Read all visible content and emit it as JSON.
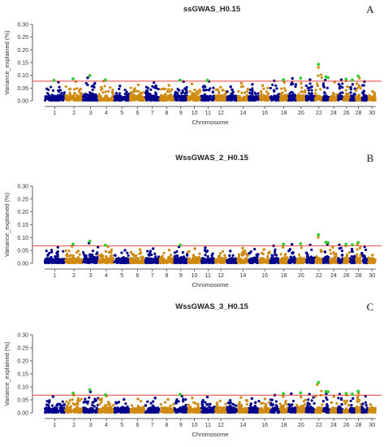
{
  "colors": {
    "odd_chromosome": "#00008b",
    "even_chromosome": "#d08a10",
    "significant": "#2ecc2e",
    "threshold_line": "#e8403a",
    "axis": "#333333"
  },
  "chart_data": [
    {
      "type": "scatter",
      "title": "ssGWAS_H0.15",
      "panel_letter": "A",
      "xlabel": "Chromosome",
      "ylabel": "Variance_explained (%)",
      "ylim": [
        0,
        0.3
      ],
      "yticks": [
        0.0,
        0.05,
        0.1,
        0.15,
        0.2,
        0.25,
        0.3
      ],
      "x_tick_labels": [
        "1",
        "2",
        "3",
        "4",
        "5",
        "6",
        "7",
        "8",
        "9",
        "10",
        "11",
        "12",
        "14",
        "16",
        "18",
        "20",
        "22",
        "24",
        "26",
        "28",
        "30"
      ],
      "threshold": 0.077,
      "grid": false,
      "chromosomes": [
        1,
        2,
        3,
        4,
        5,
        6,
        7,
        8,
        9,
        10,
        11,
        12,
        13,
        14,
        15,
        16,
        17,
        18,
        19,
        20,
        21,
        22,
        23,
        24,
        25,
        26,
        27,
        28,
        29,
        30
      ],
      "chromosome_peaks": [
        0.08,
        0.082,
        0.098,
        0.084,
        0.063,
        0.068,
        0.078,
        0.066,
        0.082,
        0.072,
        0.083,
        0.058,
        0.06,
        0.075,
        0.07,
        0.065,
        0.085,
        0.078,
        0.095,
        0.075,
        0.09,
        0.142,
        0.088,
        0.08,
        0.09,
        0.085,
        0.07,
        0.096,
        0.082,
        0.04
      ],
      "significant_points": [
        {
          "chromosome": 1,
          "value": 0.08
        },
        {
          "chromosome": 2,
          "value": 0.086
        },
        {
          "chromosome": 3,
          "value": 0.099
        },
        {
          "chromosome": 4,
          "value": 0.082
        },
        {
          "chromosome": 9,
          "value": 0.081
        },
        {
          "chromosome": 11,
          "value": 0.08
        },
        {
          "chromosome": 18,
          "value": 0.083
        },
        {
          "chromosome": 20,
          "value": 0.089
        },
        {
          "chromosome": 22,
          "value": 0.143
        },
        {
          "chromosome": 23,
          "value": 0.094
        },
        {
          "chromosome": 23,
          "value": 0.091
        },
        {
          "chromosome": 26,
          "value": 0.085
        },
        {
          "chromosome": 27,
          "value": 0.082
        },
        {
          "chromosome": 28,
          "value": 0.097
        }
      ]
    },
    {
      "type": "scatter",
      "title": "WssGWAS_2_H0.15",
      "panel_letter": "B",
      "xlabel": "Chromosome",
      "ylabel": "Variance_explained (%)",
      "ylim": [
        0,
        0.3
      ],
      "yticks": [
        0.0,
        0.05,
        0.1,
        0.15,
        0.2,
        0.25,
        0.3
      ],
      "x_tick_labels": [
        "1",
        "2",
        "3",
        "4",
        "5",
        "6",
        "7",
        "8",
        "9",
        "10",
        "11",
        "12",
        "14",
        "16",
        "18",
        "20",
        "22",
        "24",
        "26",
        "28",
        "30"
      ],
      "threshold": 0.068,
      "grid": false,
      "chromosomes": [
        1,
        2,
        3,
        4,
        5,
        6,
        7,
        8,
        9,
        10,
        11,
        12,
        13,
        14,
        15,
        16,
        17,
        18,
        19,
        20,
        21,
        22,
        23,
        24,
        25,
        26,
        27,
        28,
        29,
        30
      ],
      "chromosome_peaks": [
        0.068,
        0.072,
        0.085,
        0.07,
        0.055,
        0.058,
        0.062,
        0.056,
        0.07,
        0.062,
        0.066,
        0.05,
        0.052,
        0.064,
        0.06,
        0.058,
        0.074,
        0.068,
        0.08,
        0.066,
        0.078,
        0.11,
        0.08,
        0.068,
        0.078,
        0.074,
        0.06,
        0.08,
        0.07,
        0.035
      ],
      "significant_points": [
        {
          "chromosome": 2,
          "value": 0.075
        },
        {
          "chromosome": 3,
          "value": 0.086
        },
        {
          "chromosome": 4,
          "value": 0.07
        },
        {
          "chromosome": 9,
          "value": 0.071
        },
        {
          "chromosome": 18,
          "value": 0.074
        },
        {
          "chromosome": 20,
          "value": 0.076
        },
        {
          "chromosome": 22,
          "value": 0.111
        },
        {
          "chromosome": 23,
          "value": 0.082
        },
        {
          "chromosome": 23,
          "value": 0.08
        },
        {
          "chromosome": 26,
          "value": 0.074
        },
        {
          "chromosome": 27,
          "value": 0.072
        },
        {
          "chromosome": 28,
          "value": 0.081
        }
      ]
    },
    {
      "type": "scatter",
      "title": "WssGWAS_3_H0.15",
      "panel_letter": "C",
      "xlabel": "Chromosome",
      "ylabel": "Variance_explained (%)",
      "ylim": [
        0,
        0.3
      ],
      "yticks": [
        0.0,
        0.05,
        0.1,
        0.15,
        0.2,
        0.25,
        0.3
      ],
      "x_tick_labels": [
        "1",
        "2",
        "3",
        "4",
        "5",
        "6",
        "7",
        "8",
        "9",
        "10",
        "11",
        "12",
        "14",
        "16",
        "18",
        "20",
        "22",
        "24",
        "26",
        "28",
        "30"
      ],
      "threshold": 0.068,
      "grid": false,
      "chromosomes": [
        1,
        2,
        3,
        4,
        5,
        6,
        7,
        8,
        9,
        10,
        11,
        12,
        13,
        14,
        15,
        16,
        17,
        18,
        19,
        20,
        21,
        22,
        23,
        24,
        25,
        26,
        27,
        28,
        29,
        30
      ],
      "chromosome_peaks": [
        0.068,
        0.074,
        0.088,
        0.07,
        0.056,
        0.058,
        0.062,
        0.056,
        0.07,
        0.062,
        0.066,
        0.05,
        0.052,
        0.064,
        0.06,
        0.058,
        0.074,
        0.068,
        0.08,
        0.066,
        0.078,
        0.118,
        0.08,
        0.068,
        0.078,
        0.074,
        0.06,
        0.082,
        0.07,
        0.035
      ],
      "significant_points": [
        {
          "chromosome": 2,
          "value": 0.076
        },
        {
          "chromosome": 3,
          "value": 0.089
        },
        {
          "chromosome": 4,
          "value": 0.07
        },
        {
          "chromosome": 9,
          "value": 0.071
        },
        {
          "chromosome": 18,
          "value": 0.074
        },
        {
          "chromosome": 20,
          "value": 0.077
        },
        {
          "chromosome": 22,
          "value": 0.117
        },
        {
          "chromosome": 23,
          "value": 0.082
        },
        {
          "chromosome": 23,
          "value": 0.081
        },
        {
          "chromosome": 26,
          "value": 0.075
        },
        {
          "chromosome": 27,
          "value": 0.072
        },
        {
          "chromosome": 28,
          "value": 0.083
        }
      ]
    }
  ]
}
